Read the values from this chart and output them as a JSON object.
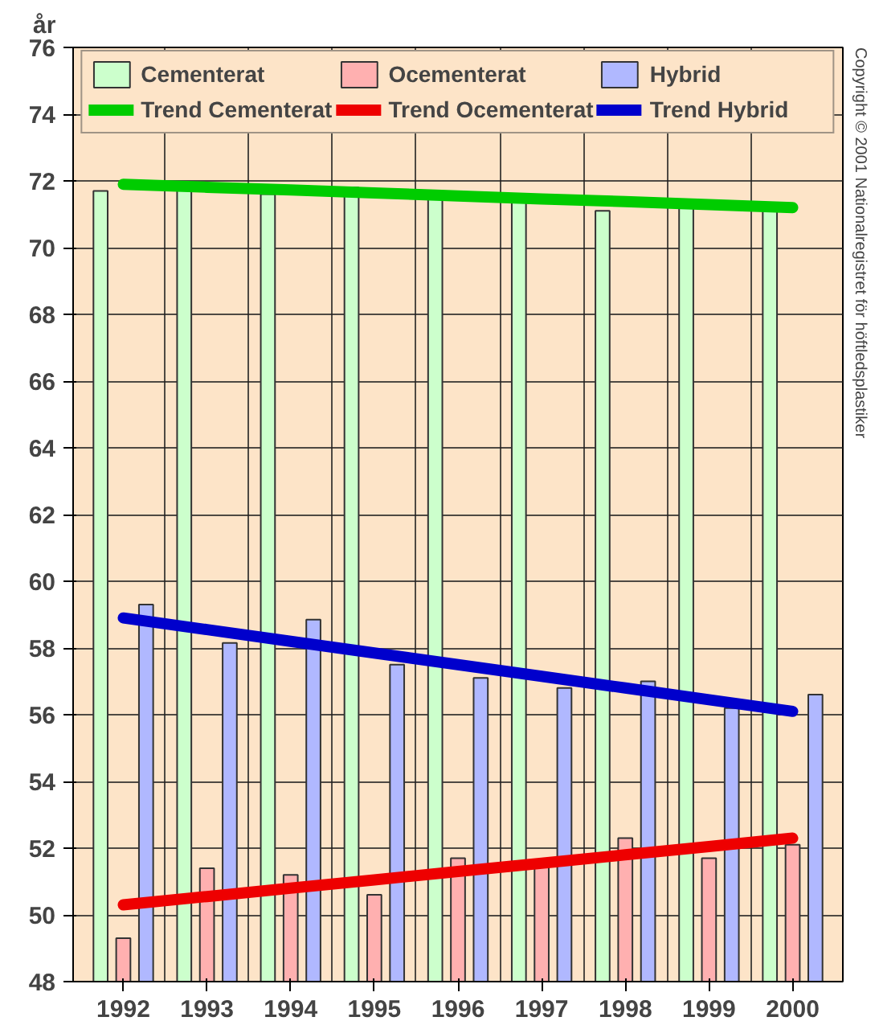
{
  "chart_data": {
    "type": "bar",
    "ylabel": "år",
    "categories": [
      "1992",
      "1993",
      "1994",
      "1995",
      "1996",
      "1997",
      "1998",
      "1999",
      "2000"
    ],
    "series": [
      {
        "name": "Cementerat",
        "color": "#ccffcc",
        "values": [
          71.7,
          71.8,
          71.6,
          71.8,
          71.5,
          71.4,
          71.1,
          71.2,
          71.2
        ]
      },
      {
        "name": "Ocementerat",
        "color": "#ffb0b0",
        "values": [
          49.3,
          51.4,
          51.2,
          50.6,
          51.7,
          51.6,
          52.3,
          51.7,
          52.1
        ]
      },
      {
        "name": "Hybrid",
        "color": "#b0b8ff",
        "values": [
          59.3,
          58.15,
          58.85,
          57.5,
          57.1,
          56.8,
          57.0,
          56.2,
          56.6
        ]
      },
      {
        "name": "Trend Cementerat",
        "type": "line",
        "color": "#00cc00",
        "values": [
          71.9,
          71.81,
          71.73,
          71.64,
          71.55,
          71.46,
          71.38,
          71.29,
          71.2
        ]
      },
      {
        "name": "Trend Ocementerat",
        "type": "line",
        "color": "#ee0000",
        "values": [
          50.3,
          50.55,
          50.8,
          51.05,
          51.3,
          51.55,
          51.8,
          52.05,
          52.3
        ]
      },
      {
        "name": "Trend Hybrid",
        "type": "line",
        "color": "#0000cc",
        "values": [
          58.9,
          58.55,
          58.2,
          57.85,
          57.5,
          57.15,
          56.8,
          56.45,
          56.1
        ]
      }
    ],
    "ylim": [
      48,
      76
    ],
    "yticks": [
      48,
      50,
      52,
      54,
      56,
      58,
      60,
      62,
      64,
      66,
      68,
      70,
      72,
      74,
      76
    ],
    "grid": true,
    "legend": "top",
    "annotations": [
      "Copyright © 2001 Nationalregistret för höftledsplastiker"
    ]
  }
}
